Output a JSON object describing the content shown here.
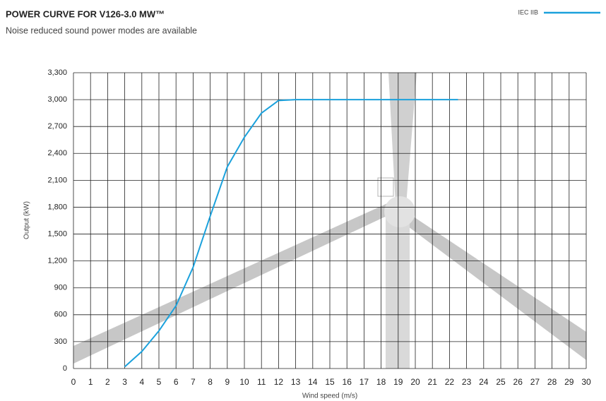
{
  "chart_data": {
    "type": "line",
    "title": "POWER CURVE FOR V126-3.0 MW™",
    "subtitle": "Noise reduced sound power modes are available",
    "x_label": "Wind speed (m/s)",
    "y_label": "Output (kW)",
    "xlim": [
      0,
      30
    ],
    "xticks": [
      0,
      1,
      2,
      3,
      4,
      5,
      6,
      7,
      8,
      9,
      10,
      11,
      12,
      13,
      14,
      15,
      16,
      17,
      18,
      19,
      20,
      21,
      22,
      23,
      24,
      25,
      26,
      27,
      28,
      29,
      30
    ],
    "ylim": [
      0,
      3300
    ],
    "yticks": [
      0,
      300,
      600,
      900,
      {
        "value": 1200,
        "label": "1,200"
      },
      {
        "value": 1500,
        "label": "1,500"
      },
      {
        "value": 1800,
        "label": "1,800"
      },
      {
        "value": 2100,
        "label": "2,100"
      },
      {
        "value": 2400,
        "label": "2,400"
      },
      {
        "value": 2700,
        "label": "2,700"
      },
      {
        "value": 3000,
        "label": "3,000"
      },
      {
        "value": 3300,
        "label": "3,300"
      }
    ],
    "grid": true,
    "legend": "top-right",
    "x": [
      3,
      4,
      5,
      6,
      7,
      8,
      9,
      10,
      11,
      12,
      13,
      22.5
    ],
    "series": [
      {
        "name": "IEC IIB",
        "color": "#1ba1dc",
        "values": [
          20,
          190,
          420,
          700,
          1130,
          1700,
          2250,
          2580,
          2850,
          2990,
          3000,
          3000
        ]
      }
    ]
  }
}
